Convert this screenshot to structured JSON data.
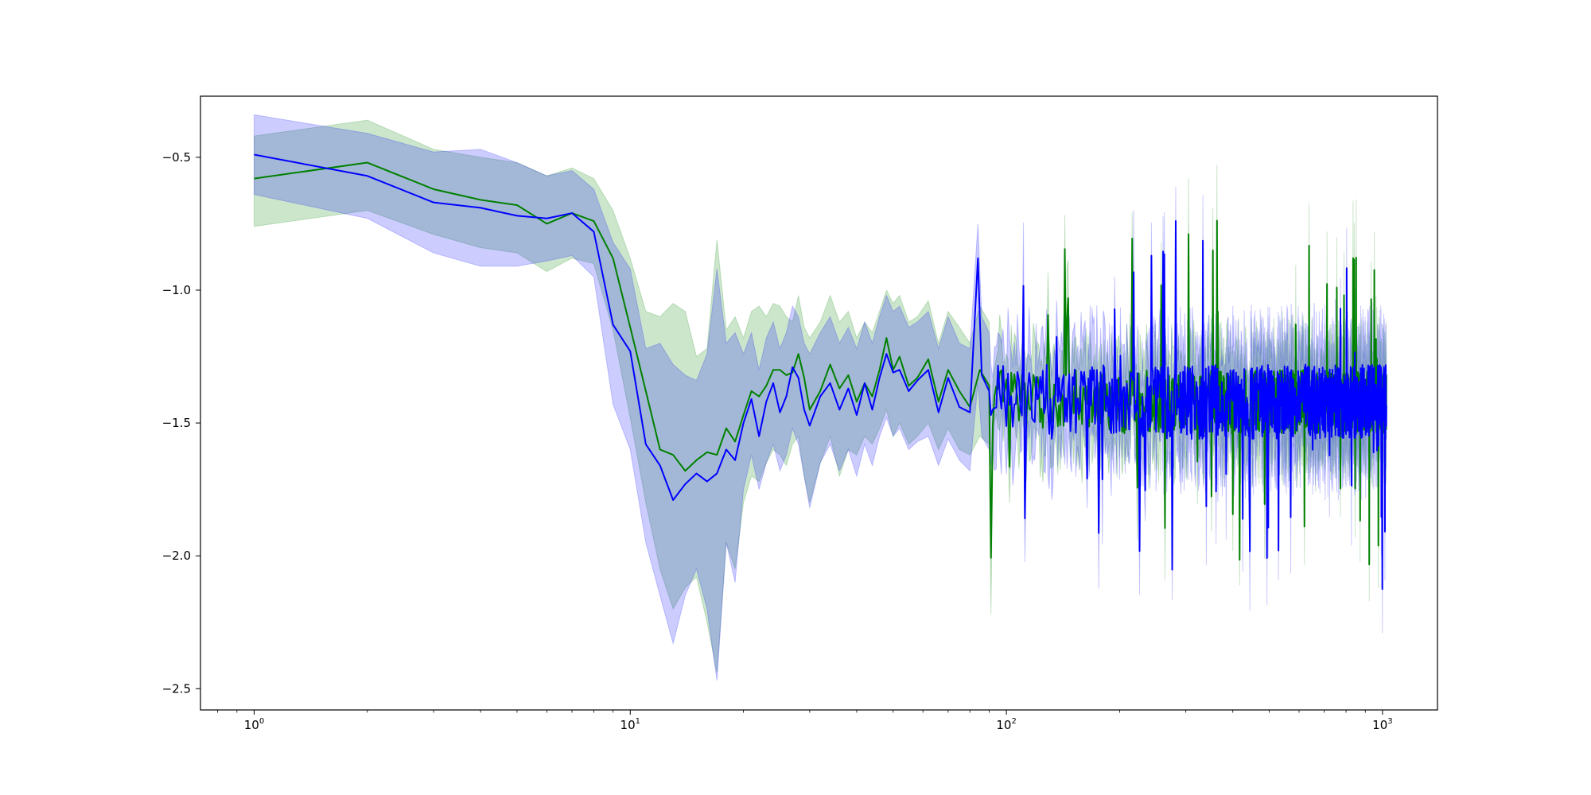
{
  "chart_data": {
    "type": "line",
    "title": "",
    "xlabel": "",
    "ylabel": "",
    "x_scale": "log",
    "xlim": [
      0.72,
      1400
    ],
    "ylim": [
      -2.58,
      -0.27
    ],
    "grid": false,
    "legend": null,
    "x_ticks": [
      {
        "base": "10",
        "exp": "0",
        "value": 1
      },
      {
        "base": "10",
        "exp": "1",
        "value": 10
      },
      {
        "base": "10",
        "exp": "2",
        "value": 100
      },
      {
        "base": "10",
        "exp": "3",
        "value": 1000
      }
    ],
    "y_ticks": [
      {
        "label": "−0.5",
        "value": -0.5
      },
      {
        "label": "−1.0",
        "value": -1.0
      },
      {
        "label": "−1.5",
        "value": -1.5
      },
      {
        "label": "−2.0",
        "value": -2.0
      },
      {
        "label": "−2.5",
        "value": -2.5
      }
    ],
    "x_range": [
      1,
      1024
    ],
    "series": [
      {
        "color": "#008000",
        "band_color": "#008000",
        "band_opacity": 0.2,
        "mean_points": [
          [
            1,
            -0.58
          ],
          [
            2,
            -0.52
          ],
          [
            3,
            -0.62
          ],
          [
            4,
            -0.66
          ],
          [
            5,
            -0.68
          ],
          [
            6,
            -0.75
          ],
          [
            7,
            -0.71
          ],
          [
            8,
            -0.74
          ],
          [
            9,
            -0.88
          ],
          [
            10,
            -1.14
          ],
          [
            11,
            -1.38
          ],
          [
            12,
            -1.6
          ],
          [
            13,
            -1.62
          ],
          [
            14,
            -1.68
          ],
          [
            15,
            -1.64
          ],
          [
            16,
            -1.61
          ],
          [
            17,
            -1.62
          ],
          [
            18,
            -1.52
          ],
          [
            19,
            -1.57
          ],
          [
            20,
            -1.47
          ],
          [
            21,
            -1.38
          ],
          [
            22,
            -1.4
          ],
          [
            23,
            -1.36
          ],
          [
            24,
            -1.3
          ],
          [
            25,
            -1.3
          ],
          [
            26,
            -1.32
          ],
          [
            27,
            -1.31
          ],
          [
            28,
            -1.24
          ],
          [
            29,
            -1.33
          ],
          [
            30,
            -1.45
          ],
          [
            32,
            -1.38
          ],
          [
            34,
            -1.28
          ],
          [
            36,
            -1.37
          ],
          [
            38,
            -1.32
          ],
          [
            40,
            -1.42
          ],
          [
            42,
            -1.35
          ],
          [
            44,
            -1.4
          ],
          [
            46,
            -1.3
          ],
          [
            48,
            -1.18
          ],
          [
            50,
            -1.3
          ],
          [
            52,
            -1.25
          ],
          [
            55,
            -1.36
          ],
          [
            58,
            -1.33
          ],
          [
            62,
            -1.26
          ],
          [
            66,
            -1.42
          ],
          [
            70,
            -1.3
          ],
          [
            75,
            -1.38
          ],
          [
            80,
            -1.44
          ],
          [
            85,
            -1.3
          ],
          [
            90,
            -1.36
          ]
        ],
        "lower_points": [
          [
            1,
            -0.76
          ],
          [
            2,
            -0.7
          ],
          [
            3,
            -0.79
          ],
          [
            4,
            -0.84
          ],
          [
            5,
            -0.86
          ],
          [
            6,
            -0.93
          ],
          [
            7,
            -0.88
          ],
          [
            8,
            -0.9
          ],
          [
            9,
            -1.15
          ],
          [
            10,
            -1.48
          ],
          [
            11,
            -1.8
          ],
          [
            12,
            -2.05
          ],
          [
            13,
            -2.2
          ],
          [
            14,
            -2.12
          ],
          [
            15,
            -2.08
          ],
          [
            16,
            -2.25
          ],
          [
            17,
            -2.44
          ],
          [
            18,
            -1.95
          ],
          [
            19,
            -2.05
          ],
          [
            20,
            -1.8
          ],
          [
            21,
            -1.7
          ],
          [
            22,
            -1.72
          ],
          [
            23,
            -1.65
          ],
          [
            24,
            -1.6
          ],
          [
            25,
            -1.62
          ],
          [
            26,
            -1.66
          ],
          [
            27,
            -1.58
          ],
          [
            28,
            -1.55
          ],
          [
            29,
            -1.7
          ],
          [
            30,
            -1.8
          ],
          [
            32,
            -1.65
          ],
          [
            34,
            -1.55
          ],
          [
            36,
            -1.7
          ],
          [
            38,
            -1.6
          ],
          [
            40,
            -1.62
          ],
          [
            42,
            -1.55
          ],
          [
            44,
            -1.58
          ],
          [
            46,
            -1.52
          ],
          [
            48,
            -1.45
          ],
          [
            50,
            -1.55
          ],
          [
            52,
            -1.5
          ],
          [
            55,
            -1.58
          ],
          [
            58,
            -1.55
          ],
          [
            62,
            -1.5
          ],
          [
            66,
            -1.6
          ],
          [
            70,
            -1.52
          ],
          [
            75,
            -1.6
          ],
          [
            80,
            -1.62
          ],
          [
            85,
            -1.55
          ],
          [
            90,
            -1.58
          ]
        ],
        "upper_points": [
          [
            1,
            -0.42
          ],
          [
            2,
            -0.36
          ],
          [
            3,
            -0.47
          ],
          [
            4,
            -0.5
          ],
          [
            5,
            -0.52
          ],
          [
            6,
            -0.57
          ],
          [
            7,
            -0.54
          ],
          [
            8,
            -0.58
          ],
          [
            9,
            -0.7
          ],
          [
            10,
            -0.88
          ],
          [
            11,
            -1.08
          ],
          [
            12,
            -1.1
          ],
          [
            13,
            -1.05
          ],
          [
            14,
            -1.08
          ],
          [
            15,
            -1.25
          ],
          [
            16,
            -1.22
          ],
          [
            17,
            -0.81
          ],
          [
            18,
            -1.15
          ],
          [
            19,
            -1.1
          ],
          [
            20,
            -1.18
          ],
          [
            21,
            -1.08
          ],
          [
            22,
            -1.06
          ],
          [
            23,
            -1.1
          ],
          [
            24,
            -1.05
          ],
          [
            25,
            -1.06
          ],
          [
            26,
            -1.1
          ],
          [
            27,
            -1.12
          ],
          [
            28,
            -1.02
          ],
          [
            29,
            -1.14
          ],
          [
            30,
            -1.18
          ],
          [
            32,
            -1.12
          ],
          [
            34,
            -1.02
          ],
          [
            36,
            -1.12
          ],
          [
            38,
            -1.08
          ],
          [
            40,
            -1.18
          ],
          [
            42,
            -1.12
          ],
          [
            44,
            -1.16
          ],
          [
            46,
            -1.08
          ],
          [
            48,
            -1.0
          ],
          [
            50,
            -1.05
          ],
          [
            52,
            -1.02
          ],
          [
            55,
            -1.12
          ],
          [
            58,
            -1.1
          ],
          [
            62,
            -1.04
          ],
          [
            66,
            -1.2
          ],
          [
            70,
            -1.08
          ],
          [
            75,
            -1.14
          ],
          [
            80,
            -1.2
          ],
          [
            85,
            -1.06
          ],
          [
            90,
            -1.12
          ]
        ],
        "noise_tail": {
          "start": 90,
          "end": 1024,
          "center": -1.42,
          "spread": 0.12,
          "band_half_width": 0.16
        }
      },
      {
        "color": "#0000ff",
        "band_color": "#0000ff",
        "band_opacity": 0.2,
        "mean_points": [
          [
            1,
            -0.49
          ],
          [
            2,
            -0.57
          ],
          [
            3,
            -0.67
          ],
          [
            4,
            -0.69
          ],
          [
            5,
            -0.72
          ],
          [
            6,
            -0.73
          ],
          [
            7,
            -0.71
          ],
          [
            8,
            -0.78
          ],
          [
            9,
            -1.13
          ],
          [
            10,
            -1.23
          ],
          [
            11,
            -1.58
          ],
          [
            12,
            -1.66
          ],
          [
            13,
            -1.79
          ],
          [
            14,
            -1.73
          ],
          [
            15,
            -1.69
          ],
          [
            16,
            -1.72
          ],
          [
            17,
            -1.69
          ],
          [
            18,
            -1.6
          ],
          [
            19,
            -1.64
          ],
          [
            20,
            -1.5
          ],
          [
            21,
            -1.41
          ],
          [
            22,
            -1.55
          ],
          [
            23,
            -1.42
          ],
          [
            24,
            -1.35
          ],
          [
            25,
            -1.46
          ],
          [
            26,
            -1.4
          ],
          [
            27,
            -1.29
          ],
          [
            28,
            -1.33
          ],
          [
            29,
            -1.45
          ],
          [
            30,
            -1.51
          ],
          [
            32,
            -1.4
          ],
          [
            34,
            -1.35
          ],
          [
            36,
            -1.45
          ],
          [
            38,
            -1.37
          ],
          [
            40,
            -1.47
          ],
          [
            42,
            -1.35
          ],
          [
            44,
            -1.45
          ],
          [
            46,
            -1.33
          ],
          [
            48,
            -1.24
          ],
          [
            50,
            -1.31
          ],
          [
            52,
            -1.3
          ],
          [
            55,
            -1.38
          ],
          [
            58,
            -1.34
          ],
          [
            62,
            -1.3
          ],
          [
            66,
            -1.46
          ],
          [
            70,
            -1.33
          ],
          [
            75,
            -1.44
          ],
          [
            80,
            -1.46
          ],
          [
            84,
            -0.88
          ],
          [
            86,
            -1.32
          ],
          [
            90,
            -1.38
          ]
        ],
        "lower_points": [
          [
            1,
            -0.64
          ],
          [
            2,
            -0.73
          ],
          [
            3,
            -0.86
          ],
          [
            4,
            -0.91
          ],
          [
            5,
            -0.91
          ],
          [
            6,
            -0.89
          ],
          [
            7,
            -0.87
          ],
          [
            8,
            -0.95
          ],
          [
            9,
            -1.43
          ],
          [
            10,
            -1.6
          ],
          [
            11,
            -1.95
          ],
          [
            12,
            -2.15
          ],
          [
            13,
            -2.33
          ],
          [
            14,
            -2.15
          ],
          [
            15,
            -2.05
          ],
          [
            16,
            -2.2
          ],
          [
            17,
            -2.47
          ],
          [
            18,
            -1.95
          ],
          [
            19,
            -2.1
          ],
          [
            20,
            -1.75
          ],
          [
            21,
            -1.62
          ],
          [
            22,
            -1.75
          ],
          [
            23,
            -1.65
          ],
          [
            24,
            -1.58
          ],
          [
            25,
            -1.68
          ],
          [
            26,
            -1.62
          ],
          [
            27,
            -1.52
          ],
          [
            28,
            -1.58
          ],
          [
            29,
            -1.7
          ],
          [
            30,
            -1.82
          ],
          [
            32,
            -1.65
          ],
          [
            34,
            -1.58
          ],
          [
            36,
            -1.68
          ],
          [
            38,
            -1.6
          ],
          [
            40,
            -1.7
          ],
          [
            42,
            -1.58
          ],
          [
            44,
            -1.66
          ],
          [
            46,
            -1.55
          ],
          [
            48,
            -1.48
          ],
          [
            50,
            -1.55
          ],
          [
            52,
            -1.52
          ],
          [
            55,
            -1.6
          ],
          [
            58,
            -1.57
          ],
          [
            62,
            -1.55
          ],
          [
            66,
            -1.66
          ],
          [
            70,
            -1.56
          ],
          [
            75,
            -1.64
          ],
          [
            80,
            -1.68
          ],
          [
            84,
            -1.35
          ],
          [
            86,
            -1.55
          ],
          [
            90,
            -1.6
          ]
        ],
        "upper_points": [
          [
            1,
            -0.34
          ],
          [
            2,
            -0.41
          ],
          [
            3,
            -0.48
          ],
          [
            4,
            -0.47
          ],
          [
            5,
            -0.52
          ],
          [
            6,
            -0.57
          ],
          [
            7,
            -0.55
          ],
          [
            8,
            -0.62
          ],
          [
            9,
            -0.82
          ],
          [
            10,
            -0.92
          ],
          [
            11,
            -1.22
          ],
          [
            12,
            -1.2
          ],
          [
            13,
            -1.28
          ],
          [
            14,
            -1.32
          ],
          [
            15,
            -1.34
          ],
          [
            16,
            -1.24
          ],
          [
            17,
            -0.92
          ],
          [
            18,
            -1.2
          ],
          [
            19,
            -1.16
          ],
          [
            20,
            -1.24
          ],
          [
            21,
            -1.16
          ],
          [
            22,
            -1.3
          ],
          [
            23,
            -1.18
          ],
          [
            24,
            -1.12
          ],
          [
            25,
            -1.22
          ],
          [
            26,
            -1.16
          ],
          [
            27,
            -1.06
          ],
          [
            28,
            -1.1
          ],
          [
            29,
            -1.2
          ],
          [
            30,
            -1.24
          ],
          [
            32,
            -1.16
          ],
          [
            34,
            -1.1
          ],
          [
            36,
            -1.2
          ],
          [
            38,
            -1.14
          ],
          [
            40,
            -1.22
          ],
          [
            42,
            -1.12
          ],
          [
            44,
            -1.2
          ],
          [
            46,
            -1.1
          ],
          [
            48,
            -1.02
          ],
          [
            50,
            -1.08
          ],
          [
            52,
            -1.06
          ],
          [
            55,
            -1.14
          ],
          [
            58,
            -1.12
          ],
          [
            62,
            -1.08
          ],
          [
            66,
            -1.22
          ],
          [
            70,
            -1.1
          ],
          [
            75,
            -1.2
          ],
          [
            80,
            -1.22
          ],
          [
            84,
            -0.75
          ],
          [
            86,
            -1.1
          ],
          [
            90,
            -1.16
          ]
        ],
        "noise_tail": {
          "start": 90,
          "end": 1024,
          "center": -1.42,
          "spread": 0.14,
          "band_half_width": 0.18
        }
      }
    ]
  }
}
